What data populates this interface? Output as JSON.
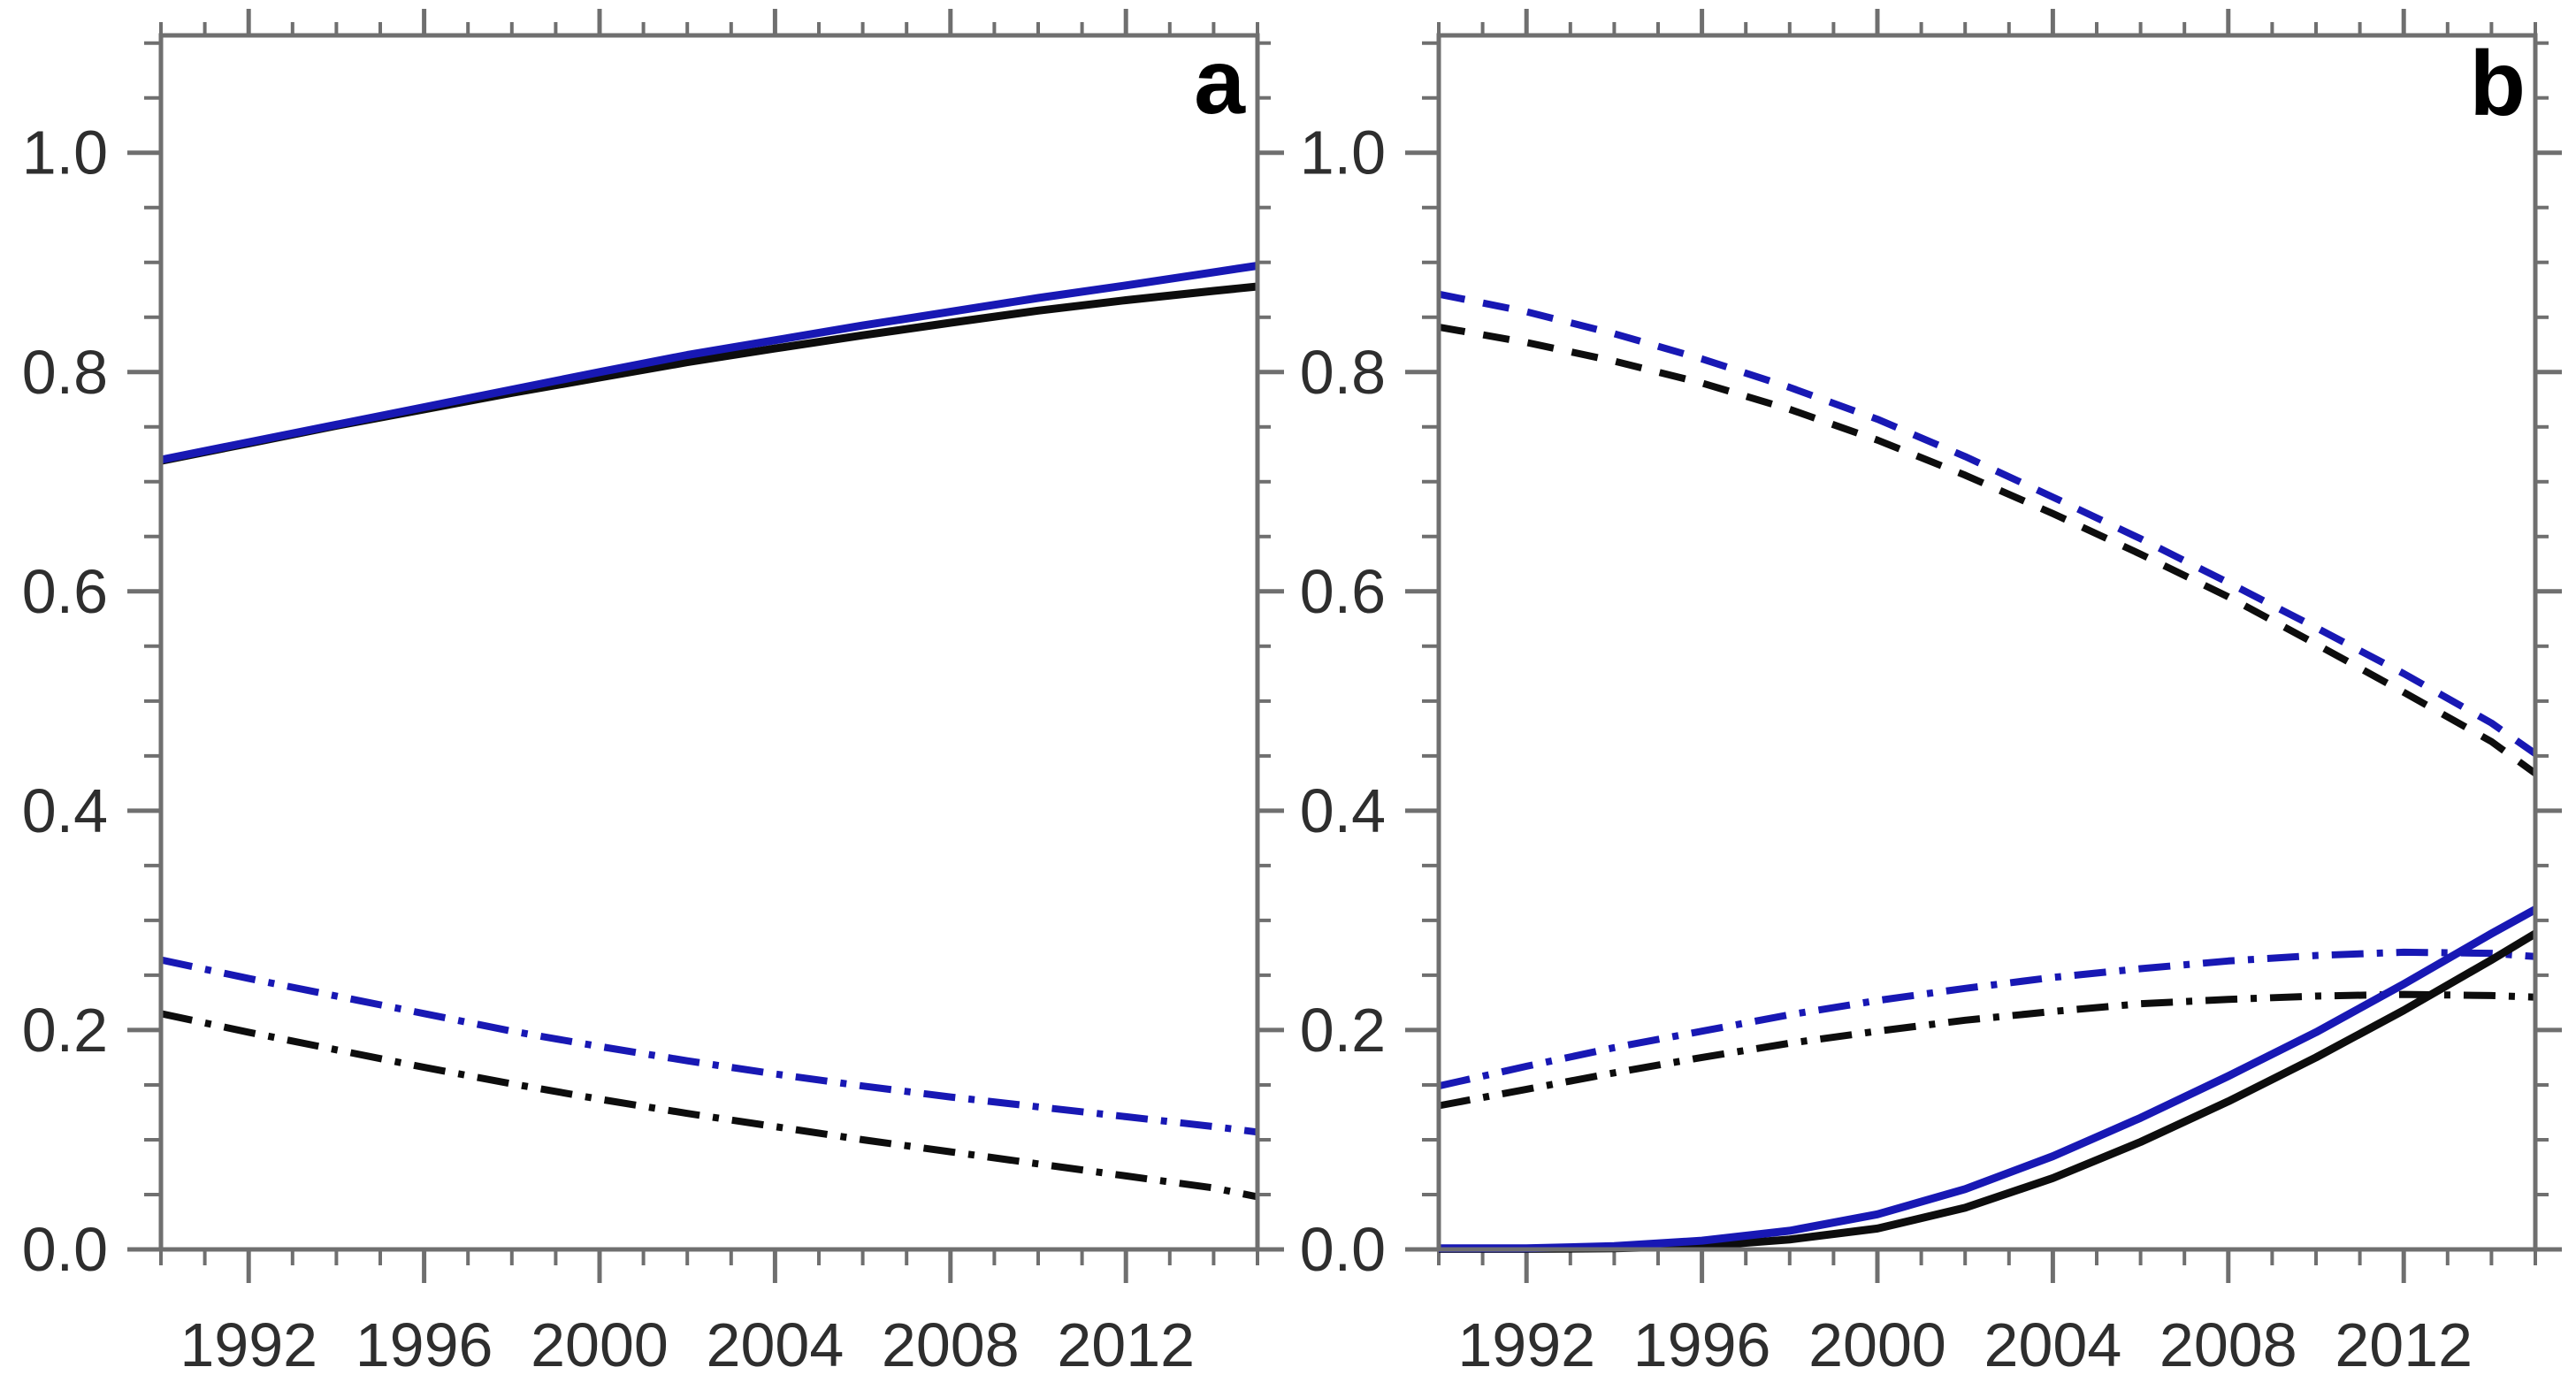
{
  "figure": {
    "description": "Two-panel time-series line chart, panels a and b",
    "background": "#ffffff",
    "colors": {
      "blue": "#1818b4",
      "black": "#0d0d0d",
      "axis": "#6f6f6f",
      "tick_label": "#2e2e2e"
    }
  },
  "chart_data": [
    {
      "type": "line",
      "panel_label": "a",
      "title": "",
      "xlabel": "",
      "ylabel": "",
      "grid": false,
      "legend_position": "none",
      "xlim": [
        1990,
        2015
      ],
      "ylim": [
        0,
        1.107
      ],
      "xticks": {
        "major": [
          1992,
          1996,
          2000,
          2004,
          2008,
          2012
        ],
        "labels": [
          "1992",
          "1996",
          "2000",
          "2004",
          "2008",
          "2012"
        ],
        "minor_step": 1
      },
      "yticks": {
        "major": [
          0,
          0.2,
          0.4,
          0.6,
          0.8,
          1.0
        ],
        "labels": [
          "0.0",
          "0.2",
          "0.4",
          "0.6",
          "0.8",
          "1.0"
        ],
        "minor_step": 0.05
      },
      "series": [
        {
          "name": "black-dashdot",
          "color": "black",
          "style": "dashdot",
          "points": [
            [
              1990,
              0.215
            ],
            [
              1992,
              0.198
            ],
            [
              1994,
              0.182
            ],
            [
              1996,
              0.166
            ],
            [
              1998,
              0.151
            ],
            [
              2000,
              0.137
            ],
            [
              2002,
              0.124
            ],
            [
              2004,
              0.112
            ],
            [
              2006,
              0.1
            ],
            [
              2008,
              0.089
            ],
            [
              2010,
              0.078
            ],
            [
              2012,
              0.067
            ],
            [
              2014,
              0.056
            ],
            [
              2015,
              0.048
            ]
          ]
        },
        {
          "name": "blue-dashdot",
          "color": "blue",
          "style": "dashdot",
          "points": [
            [
              1990,
              0.264
            ],
            [
              1992,
              0.247
            ],
            [
              1994,
              0.231
            ],
            [
              1996,
              0.215
            ],
            [
              1998,
              0.199
            ],
            [
              2000,
              0.185
            ],
            [
              2002,
              0.172
            ],
            [
              2004,
              0.16
            ],
            [
              2006,
              0.149
            ],
            [
              2008,
              0.139
            ],
            [
              2010,
              0.13
            ],
            [
              2012,
              0.121
            ],
            [
              2014,
              0.112
            ],
            [
              2015,
              0.107
            ]
          ]
        },
        {
          "name": "black-solid",
          "color": "black",
          "style": "solid",
          "points": [
            [
              1990,
              0.719
            ],
            [
              1992,
              0.735
            ],
            [
              1994,
              0.751
            ],
            [
              1996,
              0.766
            ],
            [
              1998,
              0.781
            ],
            [
              2000,
              0.795
            ],
            [
              2002,
              0.809
            ],
            [
              2004,
              0.8215
            ],
            [
              2006,
              0.8335
            ],
            [
              2008,
              0.845
            ],
            [
              2010,
              0.856
            ],
            [
              2012,
              0.8655
            ],
            [
              2014,
              0.874
            ],
            [
              2015,
              0.878
            ]
          ]
        },
        {
          "name": "blue-solid",
          "color": "blue",
          "style": "solid",
          "points": [
            [
              1990,
              0.72
            ],
            [
              1992,
              0.736
            ],
            [
              1994,
              0.752
            ],
            [
              1996,
              0.768
            ],
            [
              1998,
              0.784
            ],
            [
              2000,
              0.8
            ],
            [
              2002,
              0.8155
            ],
            [
              2004,
              0.829
            ],
            [
              2006,
              0.8425
            ],
            [
              2008,
              0.855
            ],
            [
              2010,
              0.8675
            ],
            [
              2012,
              0.879
            ],
            [
              2014,
              0.891
            ],
            [
              2015,
              0.897
            ]
          ]
        }
      ]
    },
    {
      "type": "line",
      "panel_label": "b",
      "title": "",
      "xlabel": "",
      "ylabel": "",
      "grid": false,
      "legend_position": "none",
      "xlim": [
        1990,
        2015
      ],
      "ylim": [
        0,
        1.107
      ],
      "xticks": {
        "major": [
          1992,
          1996,
          2000,
          2004,
          2008,
          2012
        ],
        "labels": [
          "1992",
          "1996",
          "2000",
          "2004",
          "2008",
          "2012"
        ],
        "minor_step": 1
      },
      "yticks": {
        "major": [
          0,
          0.2,
          0.4,
          0.6,
          0.8,
          1.0
        ],
        "labels": [
          "0.0",
          "0.2",
          "0.4",
          "0.6",
          "0.8",
          "1.0"
        ],
        "minor_step": 0.05
      },
      "series": [
        {
          "name": "black-dashed",
          "color": "black",
          "style": "dashed",
          "points": [
            [
              1990,
              0.841
            ],
            [
              1992,
              0.827
            ],
            [
              1994,
              0.81
            ],
            [
              1996,
              0.79
            ],
            [
              1998,
              0.766
            ],
            [
              2000,
              0.738
            ],
            [
              2002,
              0.706
            ],
            [
              2004,
              0.671
            ],
            [
              2006,
              0.634
            ],
            [
              2008,
              0.595
            ],
            [
              2010,
              0.552
            ],
            [
              2012,
              0.508
            ],
            [
              2014,
              0.463
            ],
            [
              2015,
              0.434
            ]
          ]
        },
        {
          "name": "blue-dashed",
          "color": "blue",
          "style": "dashed",
          "points": [
            [
              1990,
              0.871
            ],
            [
              1992,
              0.855
            ],
            [
              1994,
              0.835
            ],
            [
              1996,
              0.812
            ],
            [
              1998,
              0.786
            ],
            [
              2000,
              0.757
            ],
            [
              2002,
              0.723
            ],
            [
              2004,
              0.686
            ],
            [
              2006,
              0.648
            ],
            [
              2008,
              0.608
            ],
            [
              2010,
              0.567
            ],
            [
              2012,
              0.525
            ],
            [
              2014,
              0.48
            ],
            [
              2015,
              0.452
            ]
          ]
        },
        {
          "name": "black-dashdot",
          "color": "black",
          "style": "dashdot",
          "points": [
            [
              1990,
              0.131
            ],
            [
              1992,
              0.146
            ],
            [
              1994,
              0.161
            ],
            [
              1996,
              0.175
            ],
            [
              1998,
              0.188
            ],
            [
              2000,
              0.199
            ],
            [
              2002,
              0.209
            ],
            [
              2004,
              0.217
            ],
            [
              2006,
              0.224
            ],
            [
              2008,
              0.228
            ],
            [
              2010,
              0.231
            ],
            [
              2012,
              0.2325
            ],
            [
              2014,
              0.2315
            ],
            [
              2015,
              0.23
            ]
          ]
        },
        {
          "name": "blue-dashdot",
          "color": "blue",
          "style": "dashdot",
          "points": [
            [
              1990,
              0.149
            ],
            [
              1992,
              0.167
            ],
            [
              1994,
              0.184
            ],
            [
              1996,
              0.199
            ],
            [
              1998,
              0.214
            ],
            [
              2000,
              0.227
            ],
            [
              2002,
              0.238
            ],
            [
              2004,
              0.248
            ],
            [
              2006,
              0.256
            ],
            [
              2008,
              0.263
            ],
            [
              2010,
              0.268
            ],
            [
              2012,
              0.271
            ],
            [
              2014,
              0.27
            ],
            [
              2015,
              0.267
            ]
          ]
        },
        {
          "name": "black-solid",
          "color": "black",
          "style": "solid",
          "points": [
            [
              1990,
              0.0005
            ],
            [
              1992,
              0.0005
            ],
            [
              1994,
              0.001
            ],
            [
              1996,
              0.003
            ],
            [
              1998,
              0.009
            ],
            [
              2000,
              0.019
            ],
            [
              2002,
              0.038
            ],
            [
              2004,
              0.065
            ],
            [
              2006,
              0.098
            ],
            [
              2008,
              0.135
            ],
            [
              2010,
              0.175
            ],
            [
              2012,
              0.218
            ],
            [
              2014,
              0.264
            ],
            [
              2015,
              0.288
            ]
          ]
        },
        {
          "name": "blue-solid",
          "color": "blue",
          "style": "solid",
          "points": [
            [
              1990,
              0.001
            ],
            [
              1992,
              0.001
            ],
            [
              1994,
              0.003
            ],
            [
              1996,
              0.008
            ],
            [
              1998,
              0.017
            ],
            [
              2000,
              0.032
            ],
            [
              2002,
              0.055
            ],
            [
              2004,
              0.085
            ],
            [
              2006,
              0.12
            ],
            [
              2008,
              0.158
            ],
            [
              2010,
              0.198
            ],
            [
              2012,
              0.242
            ],
            [
              2014,
              0.288
            ],
            [
              2015,
              0.31
            ]
          ]
        }
      ]
    }
  ]
}
